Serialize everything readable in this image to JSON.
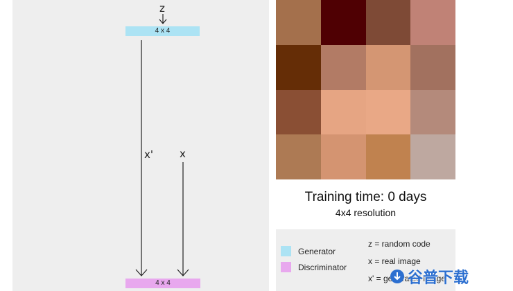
{
  "diagram": {
    "z_label": "z",
    "generator_layer": "4 x 4",
    "x_prime_label": "x'",
    "x_label": "x",
    "discriminator_layer": "4 x 4"
  },
  "image_grid": {
    "colors": [
      "#a4704c",
      "#4f0003",
      "#7e4a36",
      "#c08276",
      "#652d06",
      "#b27b65",
      "#d49673",
      "#a2715f",
      "#8a4f34",
      "#e6a583",
      "#e9a886",
      "#b48a7b",
      "#ad7a54",
      "#d49471",
      "#c0824f",
      "#bea8a0"
    ]
  },
  "training": {
    "title": "Training time: 0 days",
    "resolution": "4x4 resolution"
  },
  "legend": {
    "generator": {
      "label": "Generator",
      "color": "#ace3f4"
    },
    "discriminator": {
      "label": "Discriminator",
      "color": "#e8a8ee"
    },
    "z_desc": "z = random code",
    "x_desc": "x = real image",
    "x_prime_desc": "x' = generated image"
  },
  "watermark": {
    "text": "谷普下载"
  }
}
